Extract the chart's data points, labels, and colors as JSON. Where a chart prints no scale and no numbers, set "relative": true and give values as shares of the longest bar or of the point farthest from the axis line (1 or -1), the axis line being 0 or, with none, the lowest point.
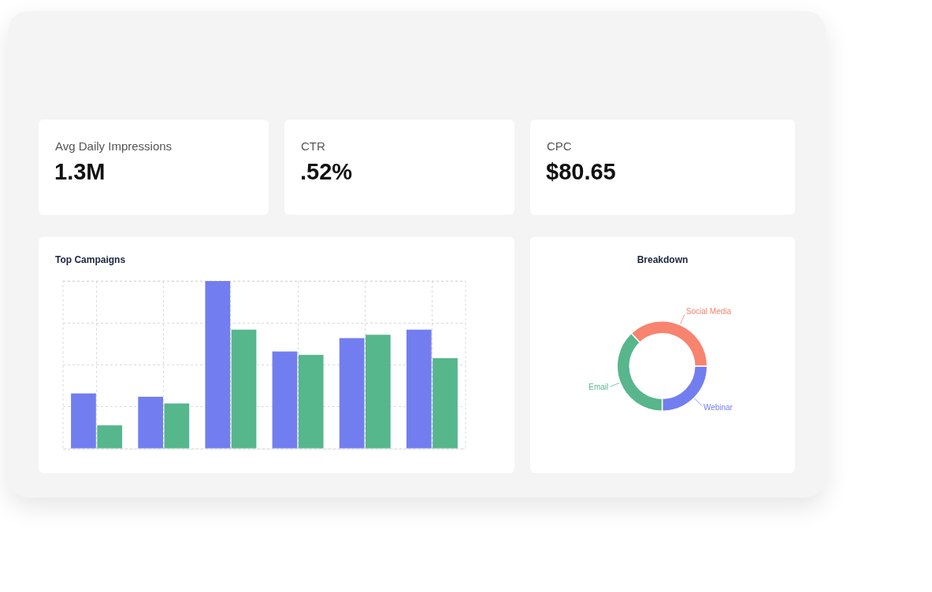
{
  "chart_data": [
    {
      "type": "other",
      "title": "Avg Daily Impressions",
      "annotations": [
        "1.3M"
      ]
    },
    {
      "type": "other",
      "title": "CTR",
      "annotations": [
        ".52%"
      ]
    },
    {
      "type": "other",
      "title": "CPC",
      "annotations": [
        "$80.65"
      ]
    },
    {
      "type": "bar",
      "title": "Top Campaigns",
      "categories": [
        null,
        null,
        null,
        null,
        null,
        null
      ],
      "series": [
        {
          "color": "#727ef0",
          "values": [
            0.33,
            0.31,
            1.0,
            0.58,
            0.66,
            0.71
          ]
        },
        {
          "color": "#56b68c",
          "values": [
            0.14,
            0.27,
            0.71,
            0.56,
            0.68,
            0.54
          ]
        }
      ],
      "relative": true,
      "grid": true
    },
    {
      "type": "donut",
      "title": "Breakdown",
      "categories": [
        "Webinar",
        "Email",
        "Social Media"
      ],
      "values": [
        25,
        38,
        37
      ],
      "colors": [
        "#727ef0",
        "#57b68c",
        "#f8836f"
      ]
    }
  ]
}
